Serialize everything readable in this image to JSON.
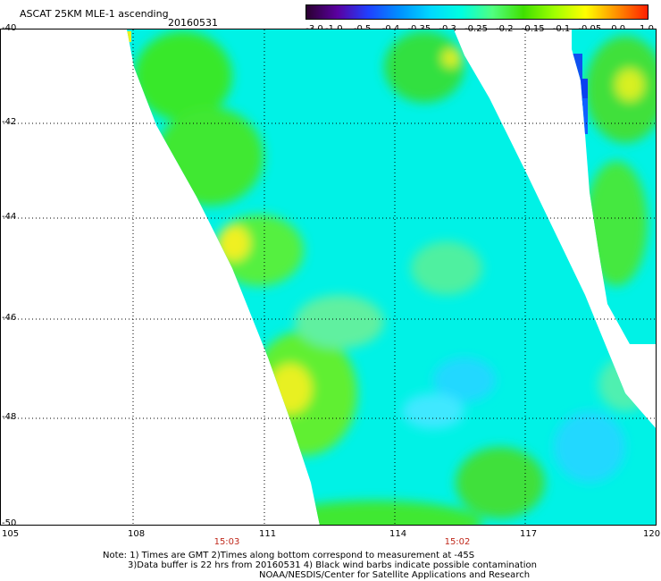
{
  "header": {
    "title": "ASCAT 25KM MLE-1 ascending",
    "date": "20160531"
  },
  "colorbar": {
    "labels": [
      "-3.0",
      "-1.0",
      "-0.5",
      "-0.4",
      "-0.35",
      "-0.3",
      "-0.25",
      "-0.2",
      "-0.15",
      "-0.1",
      "-0.05",
      "0.0",
      "1.0"
    ],
    "colors": [
      "#2a0030",
      "#5a00a0",
      "#2040ff",
      "#0090ff",
      "#00d8ff",
      "#00ffe0",
      "#50ff80",
      "#40e000",
      "#a0ff00",
      "#ffff00",
      "#ff9000",
      "#ff2000"
    ]
  },
  "map": {
    "lon_ticks": [
      "105",
      "108",
      "111",
      "114",
      "117",
      "120"
    ],
    "lat_ticks": [
      "-40",
      "-42",
      "-44",
      "-46",
      "-48",
      "-50"
    ],
    "time_labels": [
      "15:03",
      "15:02"
    ],
    "lon_range": [
      105,
      120
    ],
    "lat_range": [
      -50,
      -40
    ]
  },
  "notes": {
    "line1": "Note: 1) Times are GMT 2)Times along bottom correspond to measurement at -45S",
    "line2": "3)Data buffer is 22 hrs from 20160531 4) Black wind barbs indicate possible contamination",
    "line3": "NOAA/NESDIS/Center for Satellite Applications and Research"
  }
}
